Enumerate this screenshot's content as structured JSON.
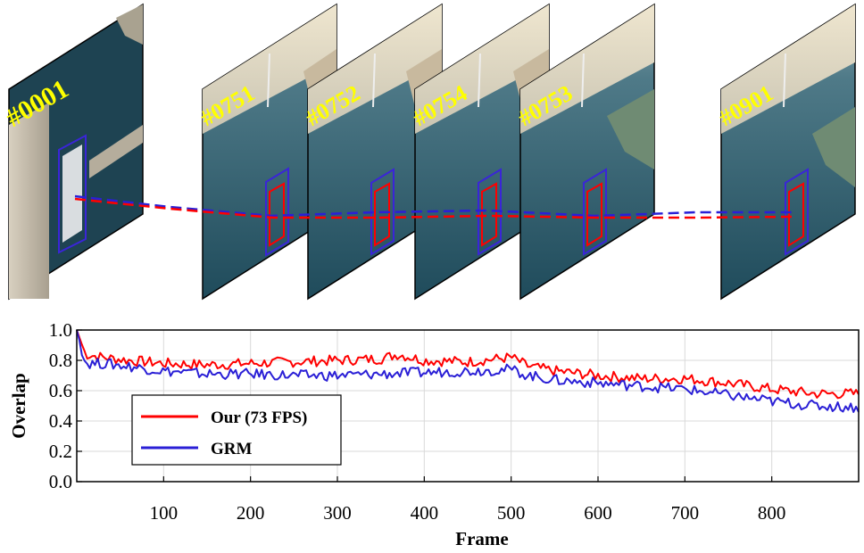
{
  "frames": [
    {
      "label": "#0001"
    },
    {
      "label": "#0751"
    },
    {
      "label": "#0752"
    },
    {
      "label": "#0754"
    },
    {
      "label": "#0753"
    },
    {
      "label": "#0901"
    }
  ],
  "colors": {
    "ours": "#ff0000",
    "grm": "#2a1fd6",
    "frame_label": "#ffff00",
    "water": "#2f5a6a",
    "sky": "#d9d2bf"
  },
  "chart_data": {
    "type": "line",
    "title": "",
    "xlabel": "Frame",
    "ylabel": "Overlap",
    "xlim": [
      0,
      900
    ],
    "ylim": [
      0,
      1.0
    ],
    "xticks": [
      100,
      200,
      300,
      400,
      500,
      600,
      700,
      800
    ],
    "yticks": [
      0.0,
      0.2,
      0.4,
      0.6,
      0.8,
      1.0
    ],
    "ytick_labels": [
      "0.0",
      "0.2",
      "0.4",
      "0.6",
      "0.8",
      "1.0"
    ],
    "grid": true,
    "legend_position": "bottom-left",
    "series": [
      {
        "name": "Our (73 FPS)",
        "color": "#ff0000",
        "x": [
          0,
          10,
          30,
          60,
          100,
          150,
          200,
          250,
          300,
          350,
          370,
          400,
          450,
          500,
          520,
          550,
          600,
          650,
          700,
          750,
          800,
          850,
          900
        ],
        "y": [
          1.0,
          0.84,
          0.82,
          0.8,
          0.78,
          0.77,
          0.78,
          0.79,
          0.8,
          0.81,
          0.84,
          0.8,
          0.79,
          0.82,
          0.76,
          0.73,
          0.7,
          0.68,
          0.68,
          0.65,
          0.61,
          0.58,
          0.58
        ]
      },
      {
        "name": "GRM",
        "color": "#2a1fd6",
        "x": [
          0,
          10,
          30,
          60,
          100,
          150,
          200,
          250,
          300,
          350,
          400,
          450,
          500,
          520,
          550,
          600,
          650,
          700,
          750,
          800,
          850,
          900
        ],
        "y": [
          1.0,
          0.78,
          0.78,
          0.76,
          0.73,
          0.71,
          0.71,
          0.7,
          0.7,
          0.71,
          0.72,
          0.73,
          0.74,
          0.7,
          0.67,
          0.65,
          0.63,
          0.61,
          0.57,
          0.53,
          0.5,
          0.49
        ]
      }
    ]
  }
}
